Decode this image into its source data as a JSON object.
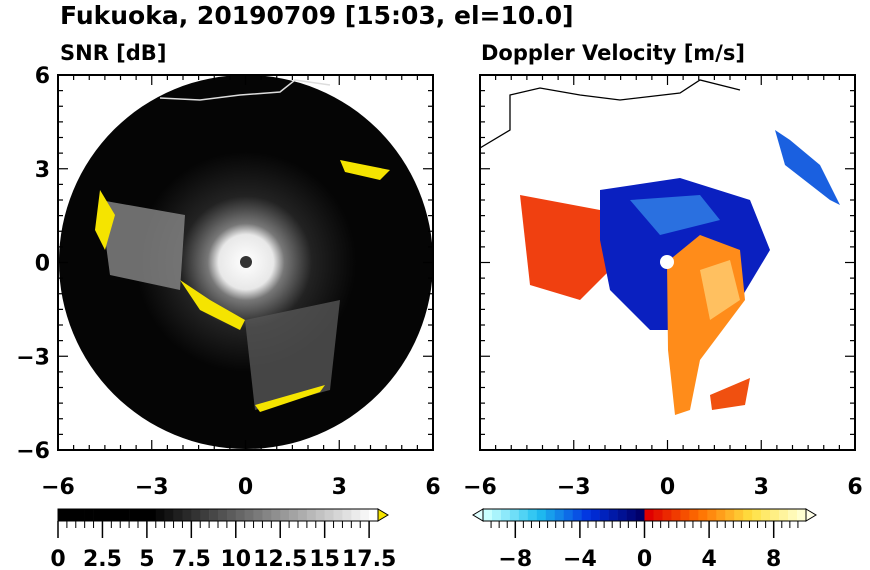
{
  "title": "Fukuoka, 20190709 [15:03, el=10.0]",
  "chart_data": [
    {
      "type": "heatmap",
      "title": "SNR [dB]",
      "xlim": [
        -6,
        6
      ],
      "ylim": [
        -6,
        6
      ],
      "xticks": [
        -6,
        -3,
        0,
        3,
        6
      ],
      "yticks": [
        -6,
        -3,
        0,
        3,
        6
      ],
      "xtick_labels": [
        "−6",
        "−3",
        "0",
        "3",
        "6"
      ],
      "ytick_labels": [
        "−6",
        "−3",
        "0",
        "3",
        "6"
      ],
      "colorbar": {
        "range": [
          0,
          18
        ],
        "levels": 36,
        "tick_values": [
          0,
          2.5,
          5,
          7.5,
          10,
          12.5,
          15,
          17.5
        ],
        "tick_labels": [
          "0",
          "2.5",
          "5",
          "7.5",
          "10",
          "12.5",
          "15",
          "17.5"
        ],
        "extend": "max",
        "over_color": "#f5e400",
        "colors": [
          "#000000",
          "#ffffff"
        ]
      }
    },
    {
      "type": "heatmap",
      "title": "Doppler Velocity [m/s]",
      "xlim": [
        -6,
        6
      ],
      "ylim": [
        -6,
        6
      ],
      "xticks": [
        -6,
        -3,
        0,
        3,
        6
      ],
      "yticks": [
        -6,
        -3,
        0,
        3,
        6
      ],
      "xtick_labels": [
        "−6",
        "−3",
        "0",
        "3",
        "6"
      ],
      "colorbar": {
        "range": [
          -10,
          10
        ],
        "levels": 36,
        "tick_values": [
          -8,
          -4,
          0,
          4,
          8
        ],
        "tick_labels": [
          "−8",
          "−4",
          "0",
          "4",
          "8"
        ],
        "extend": "both",
        "colors": [
          "#c8ffff",
          "#20c0f0",
          "#0030e0",
          "#00006a",
          "#e00000",
          "#ff7000",
          "#ffe040",
          "#ffffd0"
        ]
      }
    }
  ]
}
